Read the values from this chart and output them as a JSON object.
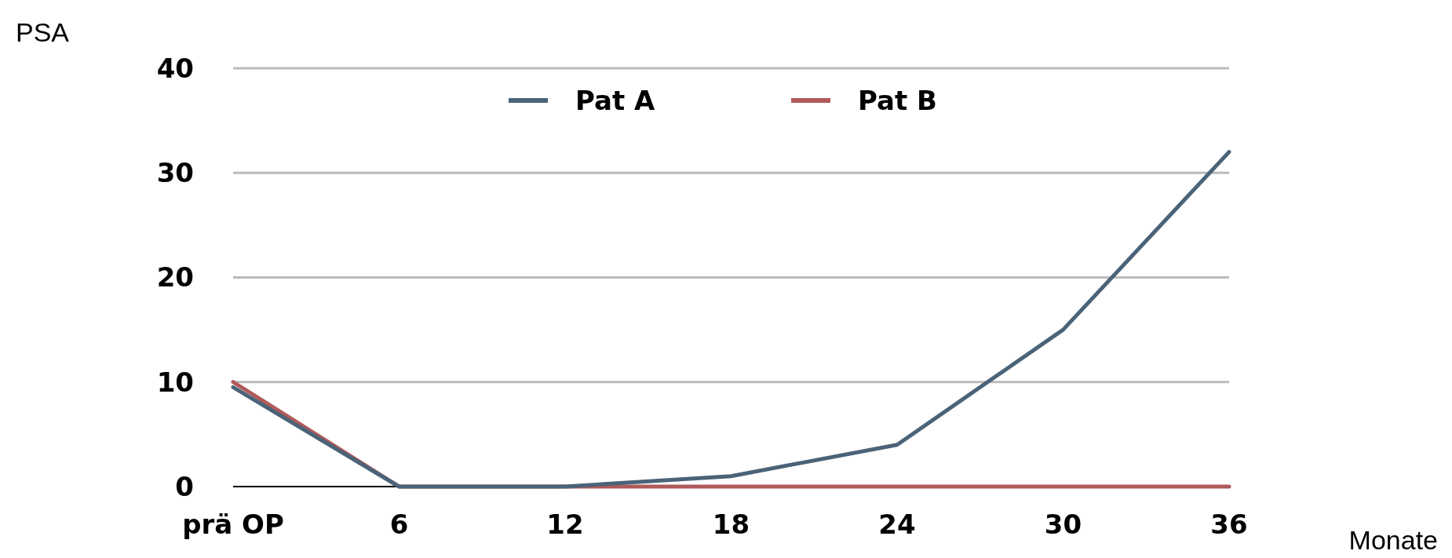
{
  "chart_data": {
    "type": "line",
    "xlabel": "Monate",
    "ylabel": "PSA",
    "categories": [
      "prä OP",
      "6",
      "12",
      "18",
      "24",
      "30",
      "36"
    ],
    "series": [
      {
        "name": "Pat B",
        "color": "#b05a5a",
        "values": [
          10,
          0,
          0,
          0,
          0,
          0,
          0
        ]
      },
      {
        "name": "Pat A",
        "color": "#4a6378",
        "values": [
          9.5,
          0,
          0,
          1,
          4,
          15,
          32
        ]
      }
    ],
    "ylim": [
      0,
      40
    ],
    "yticks": [
      0,
      10,
      20,
      30,
      40
    ],
    "grid": "y",
    "legend": "top",
    "marker": "none",
    "line_style": "solid"
  }
}
